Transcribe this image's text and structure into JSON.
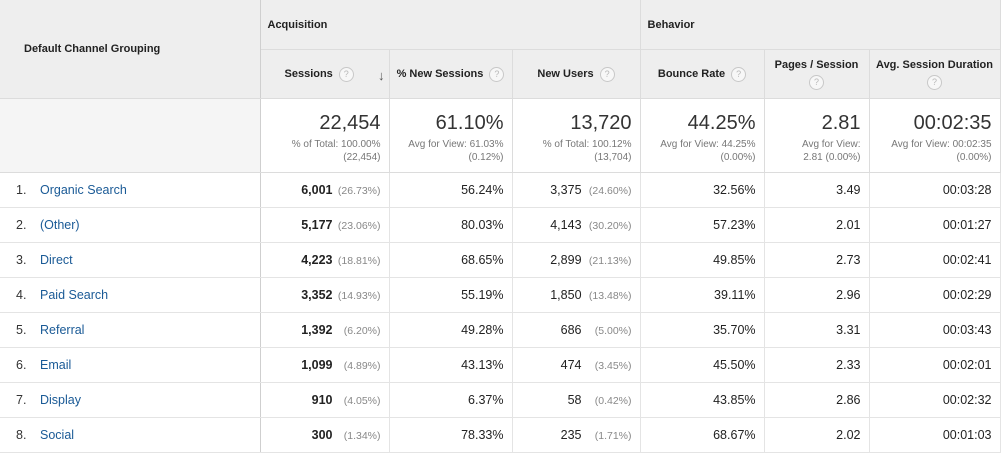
{
  "header": {
    "dimension_label": "Default Channel Grouping",
    "groups": {
      "acquisition": "Acquisition",
      "behavior": "Behavior"
    },
    "columns": {
      "sessions": "Sessions",
      "new_sessions": "% New Sessions",
      "new_users": "New Users",
      "bounce_rate": "Bounce Rate",
      "pages_session": "Pages / Session",
      "avg_duration": "Avg. Session Duration"
    },
    "help_glyph": "?",
    "sort_glyph": "↓"
  },
  "totals": {
    "sessions": {
      "value": "22,454",
      "sub1": "% of Total: 100.00%",
      "sub2": "(22,454)"
    },
    "new_sessions": {
      "value": "61.10%",
      "sub1": "Avg for View: 61.03%",
      "sub2": "(0.12%)"
    },
    "new_users": {
      "value": "13,720",
      "sub1": "% of Total: 100.12%",
      "sub2": "(13,704)"
    },
    "bounce_rate": {
      "value": "44.25%",
      "sub1": "Avg for View: 44.25%",
      "sub2": "(0.00%)"
    },
    "pages_session": {
      "value": "2.81",
      "sub1": "Avg for View:",
      "sub2": "2.81 (0.00%)"
    },
    "avg_duration": {
      "value": "00:02:35",
      "sub1": "Avg for View: 00:02:35",
      "sub2": "(0.00%)"
    }
  },
  "rows": [
    {
      "index": "1.",
      "channel": "Organic Search",
      "sessions": "6,001",
      "sessions_pct": "(26.73%)",
      "new_sessions": "56.24%",
      "new_users": "3,375",
      "new_users_pct": "(24.60%)",
      "bounce_rate": "32.56%",
      "pages_session": "3.49",
      "avg_duration": "00:03:28"
    },
    {
      "index": "2.",
      "channel": "(Other)",
      "sessions": "5,177",
      "sessions_pct": "(23.06%)",
      "new_sessions": "80.03%",
      "new_users": "4,143",
      "new_users_pct": "(30.20%)",
      "bounce_rate": "57.23%",
      "pages_session": "2.01",
      "avg_duration": "00:01:27"
    },
    {
      "index": "3.",
      "channel": "Direct",
      "sessions": "4,223",
      "sessions_pct": "(18.81%)",
      "new_sessions": "68.65%",
      "new_users": "2,899",
      "new_users_pct": "(21.13%)",
      "bounce_rate": "49.85%",
      "pages_session": "2.73",
      "avg_duration": "00:02:41"
    },
    {
      "index": "4.",
      "channel": "Paid Search",
      "sessions": "3,352",
      "sessions_pct": "(14.93%)",
      "new_sessions": "55.19%",
      "new_users": "1,850",
      "new_users_pct": "(13.48%)",
      "bounce_rate": "39.11%",
      "pages_session": "2.96",
      "avg_duration": "00:02:29"
    },
    {
      "index": "5.",
      "channel": "Referral",
      "sessions": "1,392",
      "sessions_pct": "(6.20%)",
      "new_sessions": "49.28%",
      "new_users": "686",
      "new_users_pct": "(5.00%)",
      "bounce_rate": "35.70%",
      "pages_session": "3.31",
      "avg_duration": "00:03:43"
    },
    {
      "index": "6.",
      "channel": "Email",
      "sessions": "1,099",
      "sessions_pct": "(4.89%)",
      "new_sessions": "43.13%",
      "new_users": "474",
      "new_users_pct": "(3.45%)",
      "bounce_rate": "45.50%",
      "pages_session": "2.33",
      "avg_duration": "00:02:01"
    },
    {
      "index": "7.",
      "channel": "Display",
      "sessions": "910",
      "sessions_pct": "(4.05%)",
      "new_sessions": "6.37%",
      "new_users": "58",
      "new_users_pct": "(0.42%)",
      "bounce_rate": "43.85%",
      "pages_session": "2.86",
      "avg_duration": "00:02:32"
    },
    {
      "index": "8.",
      "channel": "Social",
      "sessions": "300",
      "sessions_pct": "(1.34%)",
      "new_sessions": "78.33%",
      "new_users": "235",
      "new_users_pct": "(1.71%)",
      "bounce_rate": "68.67%",
      "pages_session": "2.02",
      "avg_duration": "00:01:03"
    }
  ],
  "colors": {
    "link": "#1a5a96",
    "header_bg": "#eeeeee",
    "muted_text": "#888888"
  }
}
